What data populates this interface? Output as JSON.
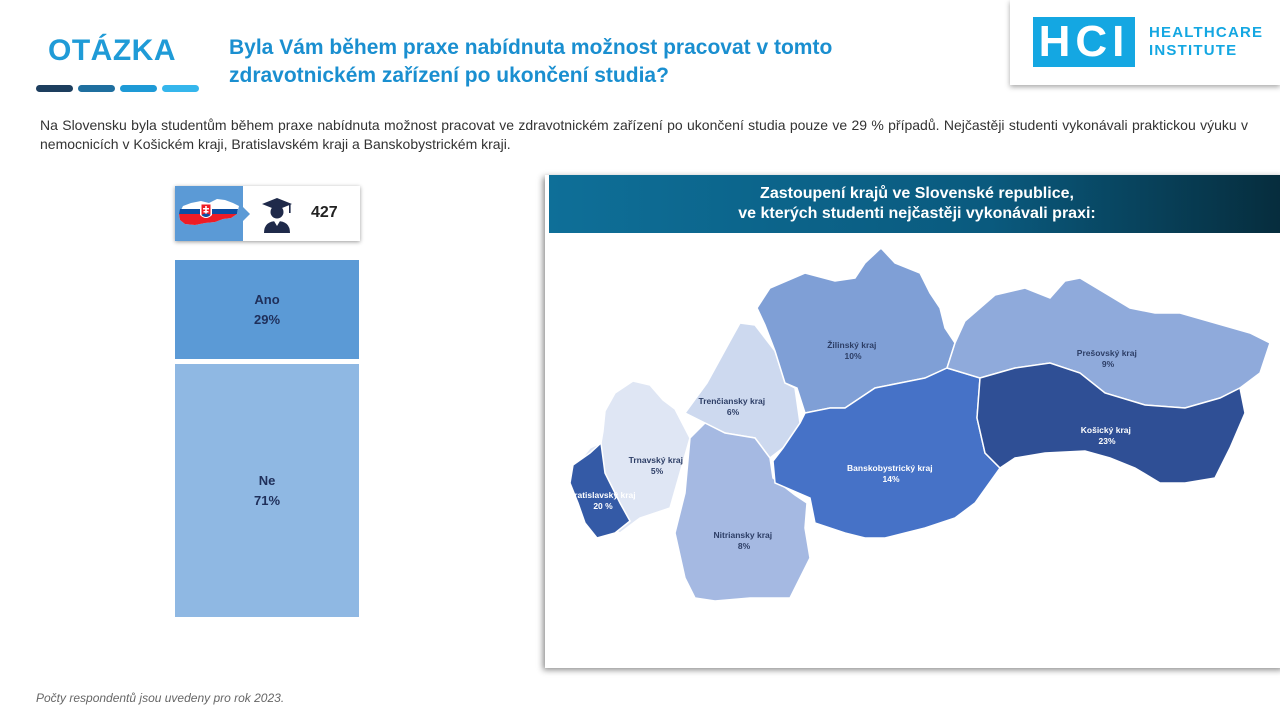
{
  "header": {
    "section_label": "OTÁZKA",
    "question_line1": "Byla Vám během praxe nabídnuta možnost pracovat v tomto",
    "question_line2": "zdravotnickém zařízení po ukončení studia?",
    "dash_colors": [
      "#1d3e5e",
      "#1f6f9f",
      "#1e9ad6",
      "#35b6ec"
    ]
  },
  "logo": {
    "mark": "HCI",
    "line1": "HEALTHCARE",
    "line2": "INSTITUTE",
    "color": "#14a7e2"
  },
  "intro_text": "Na Slovensku byla studentům během praxe nabídnuta možnost pracovat ve zdravotnickém zařízení po ukončení studia pouze ve 29 % případů. Nejčastěji studenti vykonávali praktickou výuku v nemocnicích v Košickém kraji, Bratislavském kraji a Banskobystrickém kraji.",
  "respondents": {
    "flag_icon": "slovakia-map-flag-icon",
    "person_icon": "graduate-student-icon",
    "count": "427"
  },
  "map": {
    "title_line1": "Zastoupení krajů ve Slovenské republice,",
    "title_line2": "ve kterých studenti nejčastěji vykonávali praxi:"
  },
  "chart_data": [
    {
      "type": "bar",
      "stacked": true,
      "orientation": "vertical",
      "categories": [
        "Ano",
        "Ne"
      ],
      "values": [
        29,
        71
      ],
      "value_labels": [
        "29%",
        "71%"
      ],
      "colors": [
        "#5b9ad6",
        "#8fb8e3"
      ]
    },
    {
      "type": "heatmap",
      "regions": [
        {
          "name": "Žilinský kraj",
          "value": 10,
          "label": "10%",
          "color": "#7f9fd6"
        },
        {
          "name": "Prešovský kraj",
          "value": 9,
          "label": "9%",
          "color": "#8faadb"
        },
        {
          "name": "Trenčiansky kraj",
          "value": 6,
          "label": "6%",
          "color": "#cdd9ef"
        },
        {
          "name": "Trnavský kraj",
          "value": 5,
          "label": "5%",
          "color": "#dfe6f4"
        },
        {
          "name": "Bratislavský kraj",
          "value": 20,
          "label": "20 %",
          "color": "#345aa6"
        },
        {
          "name": "Nitriansky kraj",
          "value": 8,
          "label": "8%",
          "color": "#a5b9e2"
        },
        {
          "name": "Banskobystrický kraj",
          "value": 14,
          "label": "14%",
          "color": "#4672c7"
        },
        {
          "name": "Košický kraj",
          "value": 23,
          "label": "23%",
          "color": "#2f4f95"
        }
      ]
    }
  ],
  "footnote": "Počty respondentů jsou uvedeny pro rok 2023."
}
